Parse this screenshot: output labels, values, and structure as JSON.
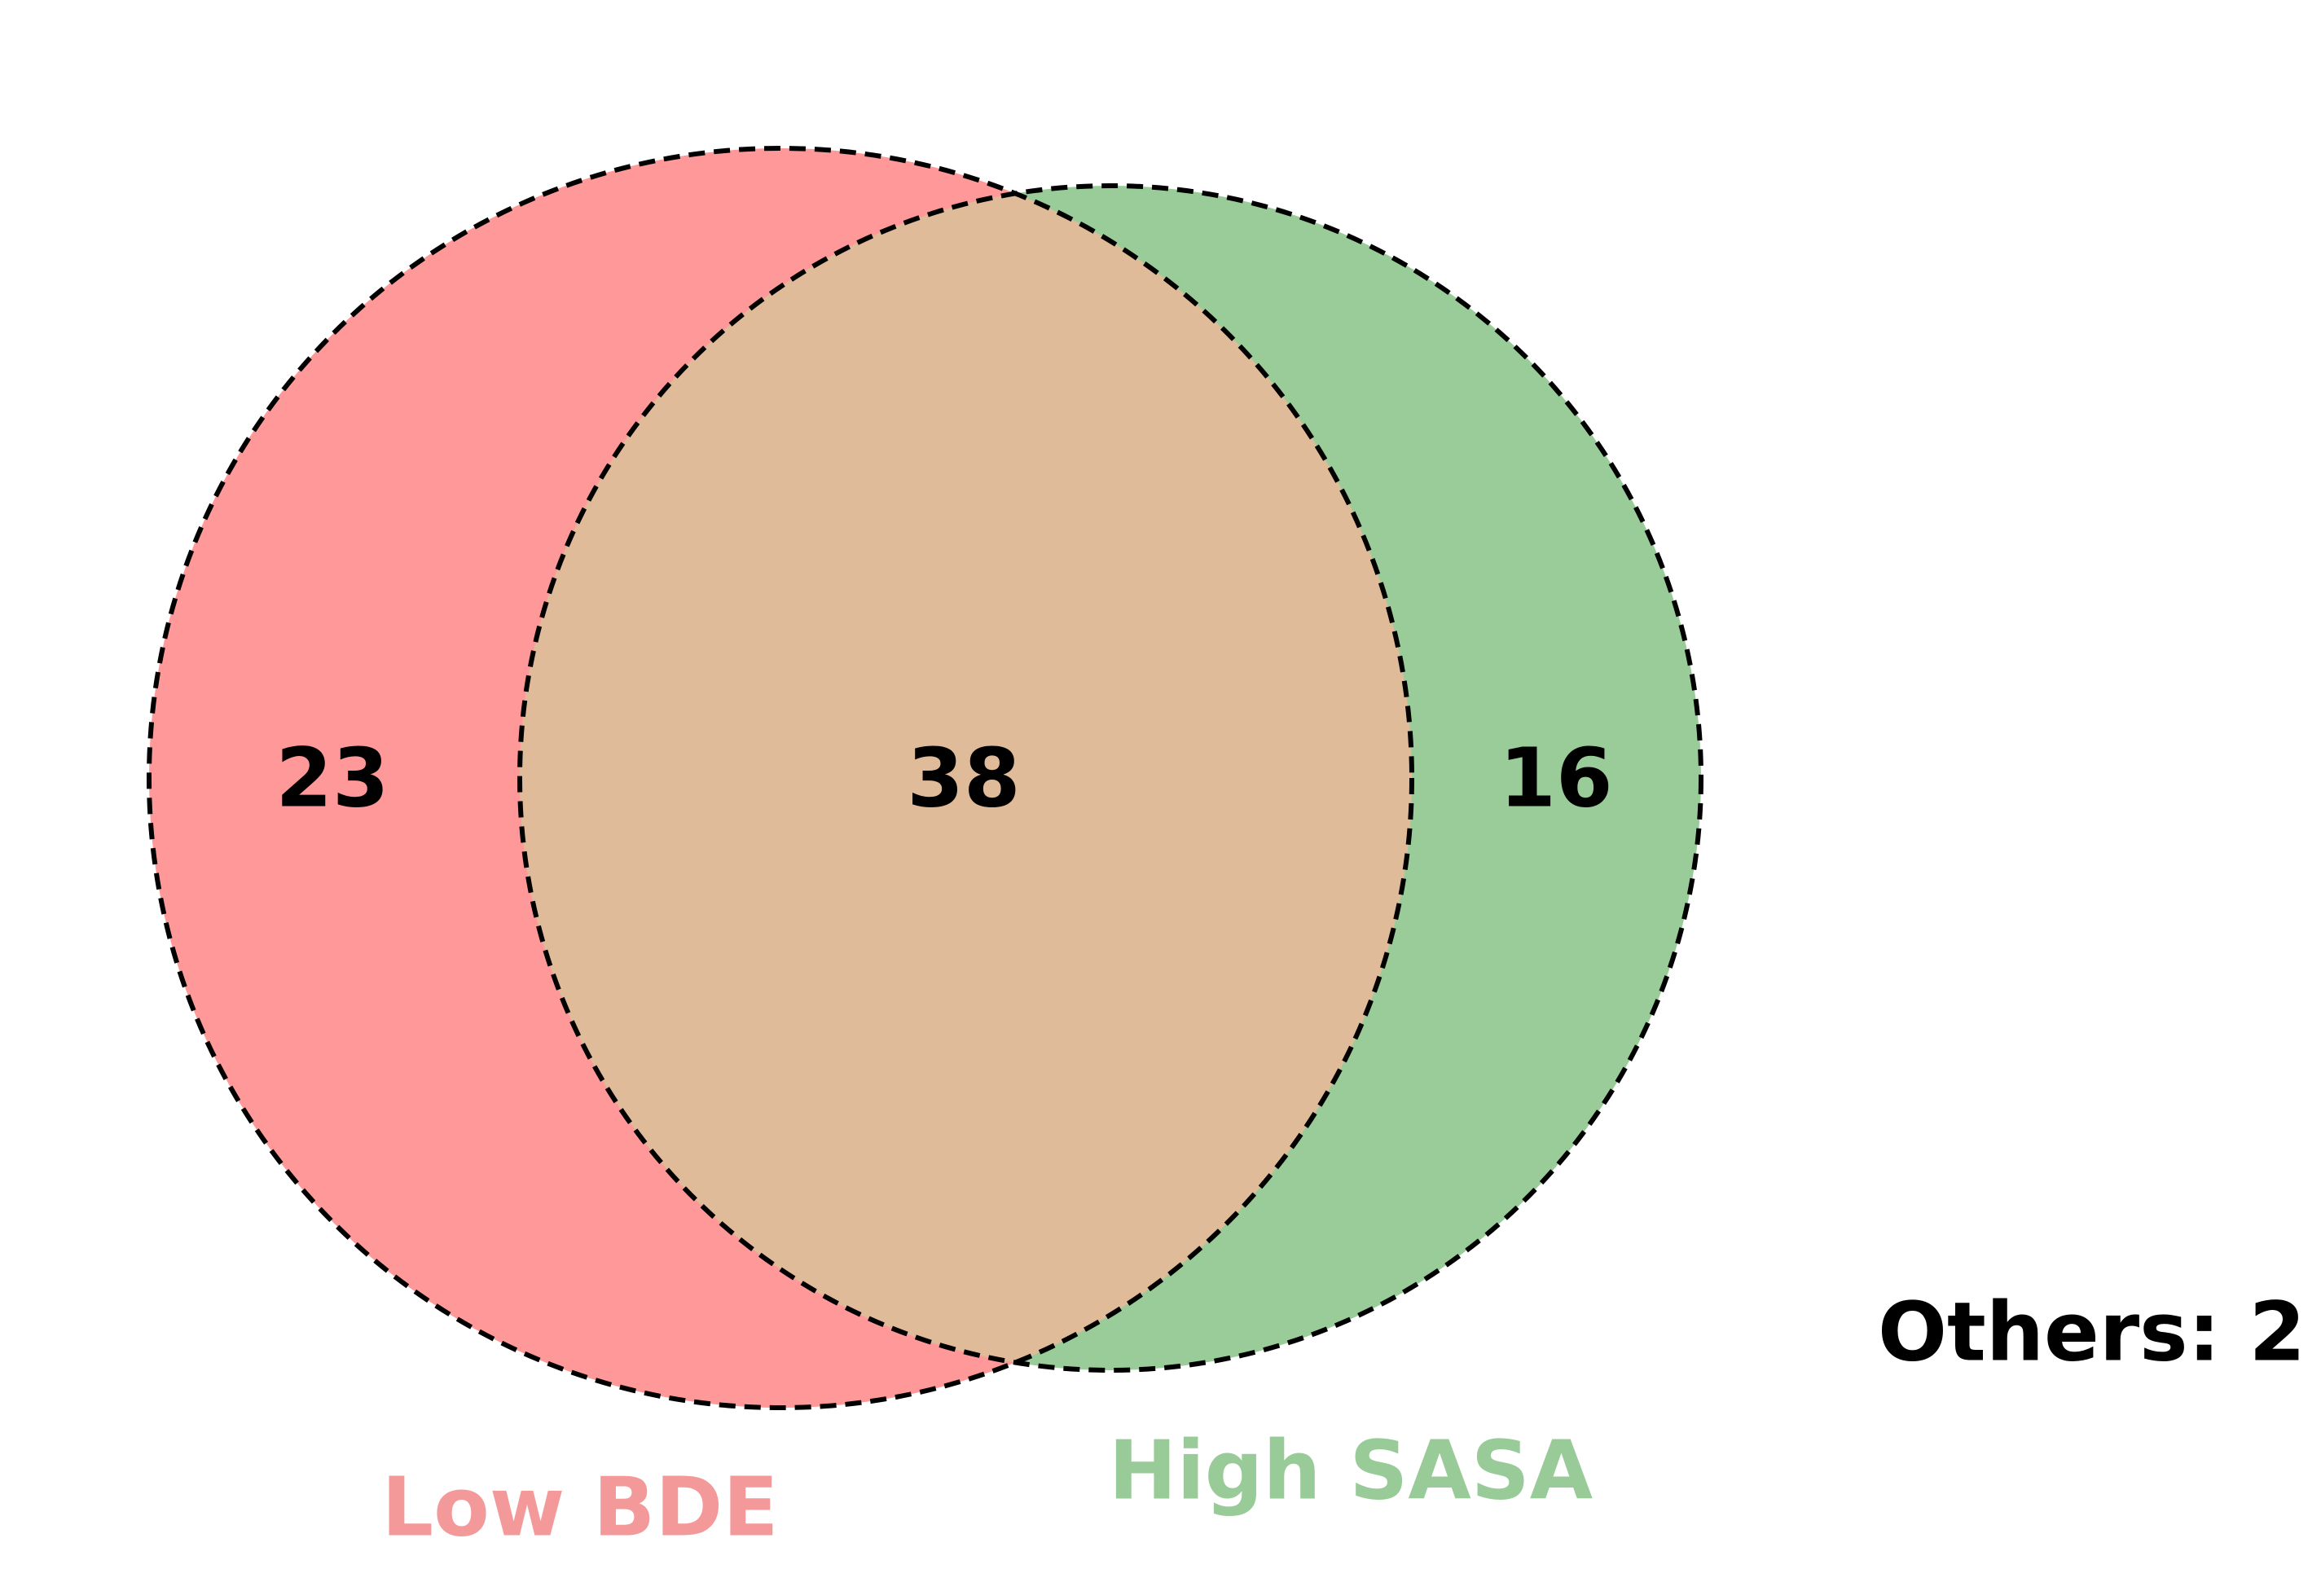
{
  "diagram": {
    "type": "venn",
    "sets": [
      {
        "name": "Low BDE",
        "color": "#ff9999",
        "label_color": "#f4999a"
      },
      {
        "name": "High SASA",
        "color": "#99cc99",
        "label_color": "#99cb99"
      }
    ],
    "intersection_color": "#e0bb99",
    "counts": {
      "left_only": "23",
      "intersection": "38",
      "right_only": "16"
    },
    "others_text": "Others: 2"
  }
}
